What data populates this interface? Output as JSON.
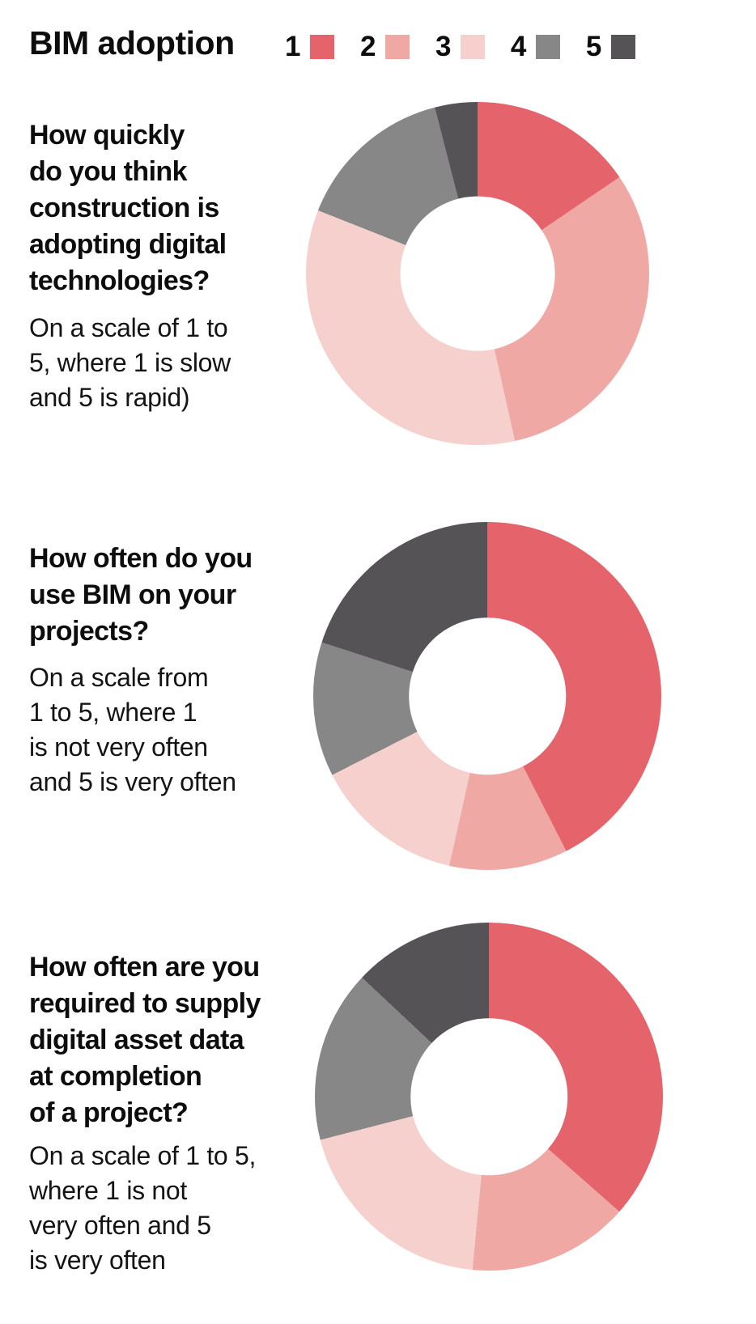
{
  "header": {
    "title": "BIM adoption"
  },
  "legend": {
    "items": [
      {
        "label": "1",
        "color": "#E5646C"
      },
      {
        "label": "2",
        "color": "#F0A8A5"
      },
      {
        "label": "3",
        "color": "#F6D0CC"
      },
      {
        "label": "4",
        "color": "#888788"
      },
      {
        "label": "5",
        "color": "#555356"
      }
    ]
  },
  "questions": [
    {
      "title": "How quickly\ndo you think\nconstruction is\nadopting digital\ntechnologies?",
      "subtitle": "On a scale of 1 to\n5, where 1 is slow\nand 5 is rapid)"
    },
    {
      "title": "How often do you\nuse BIM on your\nprojects?",
      "subtitle": "On a scale from\n1 to 5, where 1\nis not very often\nand 5 is very often"
    },
    {
      "title": "How often are you\nrequired to supply\ndigital asset data\nat completion\nof a project?",
      "subtitle": "On a scale of 1 to 5,\nwhere 1 is not\nvery often and 5\nis very often"
    }
  ],
  "chart_data": [
    {
      "type": "pie",
      "donut": true,
      "title": "How quickly do you think construction is adopting digital technologies?",
      "subtitle": "On a scale of 1 to 5, where 1 is slow and 5 is rapid)",
      "categories": [
        "1",
        "2",
        "3",
        "4",
        "5"
      ],
      "values": [
        15.5,
        31,
        34.5,
        15,
        4
      ],
      "values_unit": "percent",
      "colors": [
        "#E5646C",
        "#F0A8A5",
        "#F6D0CC",
        "#888788",
        "#555356"
      ],
      "legend_position": "top",
      "start_angle_deg": 0,
      "direction": "clockwise"
    },
    {
      "type": "pie",
      "donut": true,
      "title": "How often do you use BIM on your projects?",
      "subtitle": "On a scale from 1 to 5, where 1 is not very often and 5 is very often",
      "categories": [
        "1",
        "2",
        "3",
        "4",
        "5"
      ],
      "values": [
        42.5,
        11,
        14,
        12.5,
        20
      ],
      "values_unit": "percent",
      "colors": [
        "#E5646C",
        "#F0A8A5",
        "#F6D0CC",
        "#888788",
        "#555356"
      ],
      "legend_position": "top",
      "start_angle_deg": 0,
      "direction": "clockwise"
    },
    {
      "type": "pie",
      "donut": true,
      "title": "How often are you required to supply digital asset data at completion of a project?",
      "subtitle": "On a scale of 1 to 5, where 1 is not very often and 5 is very often",
      "categories": [
        "1",
        "2",
        "3",
        "4",
        "5"
      ],
      "values": [
        36.5,
        15,
        19.5,
        16,
        13
      ],
      "values_unit": "percent",
      "colors": [
        "#E5646C",
        "#F0A8A5",
        "#F6D0CC",
        "#888788",
        "#555356"
      ],
      "legend_position": "top",
      "start_angle_deg": 0,
      "direction": "clockwise"
    }
  ]
}
